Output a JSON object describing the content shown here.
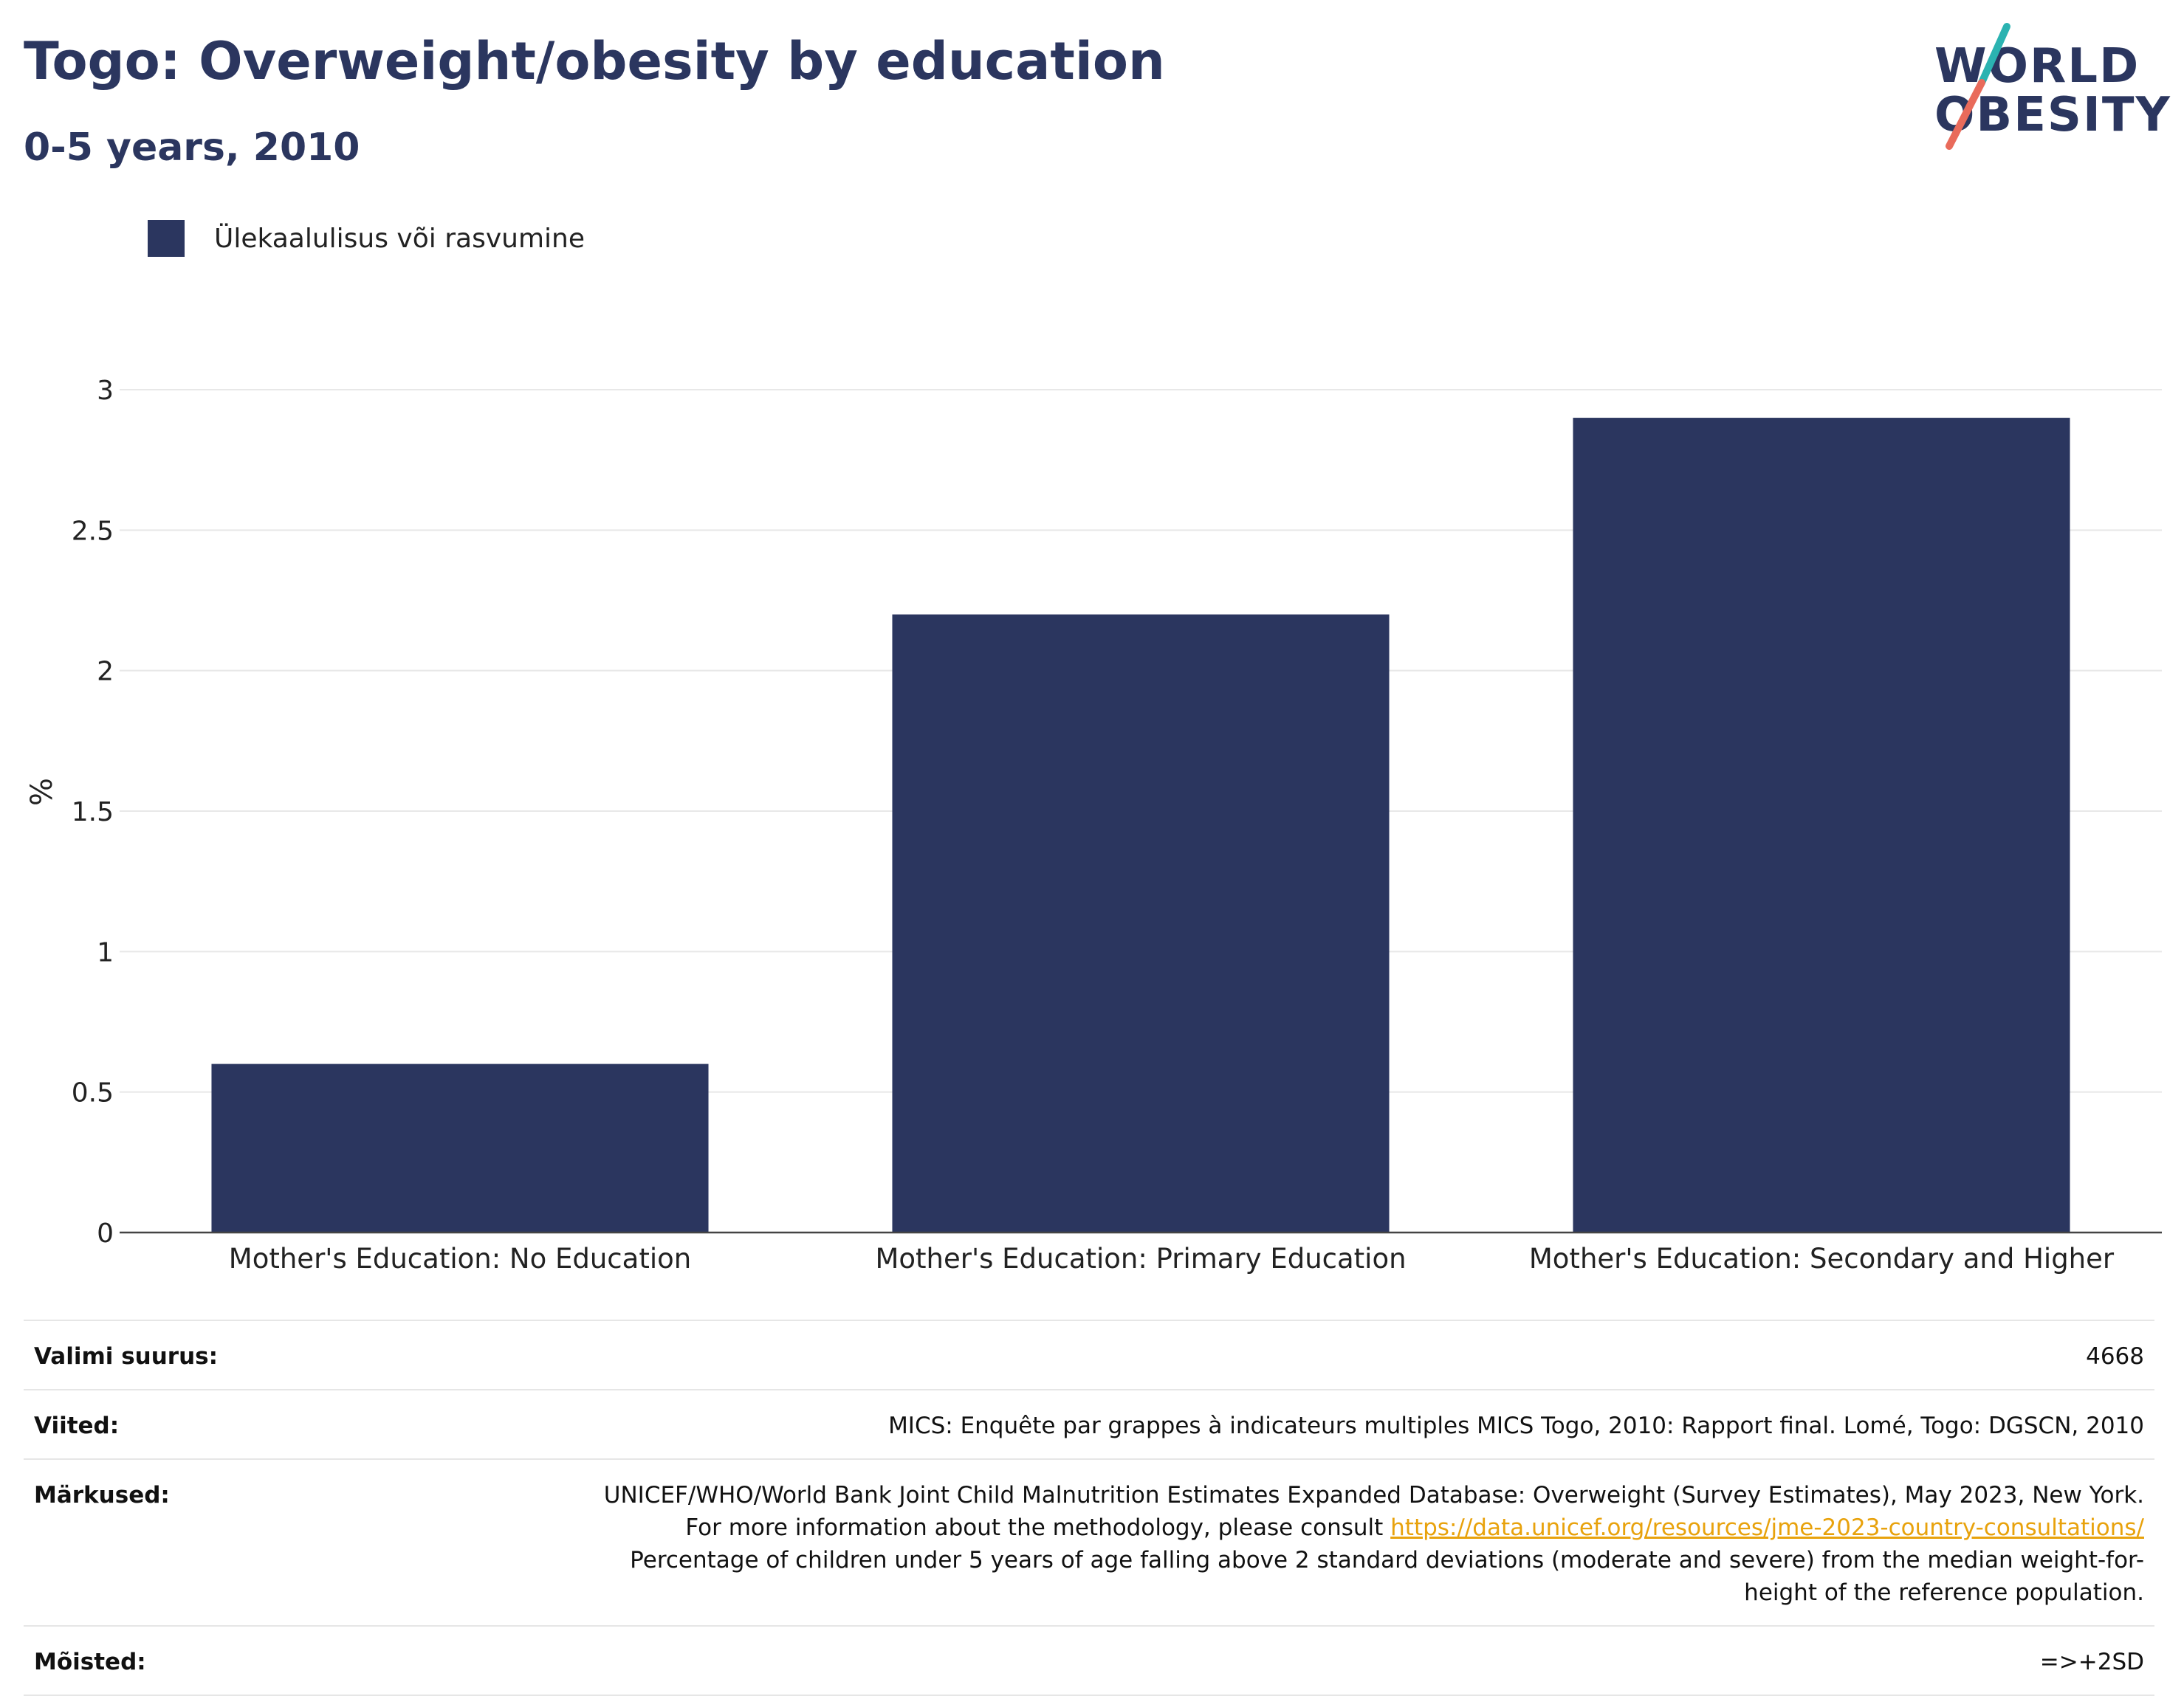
{
  "header": {
    "title": "Togo: Overweight/obesity by education",
    "subtitle": "0-5 years, 2010"
  },
  "logo": {
    "line1": "WORLD",
    "line2": "OBESITY",
    "colors": {
      "text": "#2b365f",
      "slash_top": "#2bb3b1",
      "slash_bottom": "#e96b5b"
    }
  },
  "legend": {
    "entries": [
      {
        "label": "Ülekaalulisus või rasvumine",
        "color": "#2b365f"
      }
    ]
  },
  "chart_data": {
    "type": "bar",
    "categories": [
      "Mother's Education: No Education",
      "Mother's Education: Primary Education",
      "Mother's Education: Secondary and Higher"
    ],
    "series": [
      {
        "name": "Ülekaalulisus või rasvumine",
        "values": [
          0.6,
          2.2,
          2.9
        ],
        "color": "#2b365f"
      }
    ],
    "ylabel": "%",
    "xlabel": "",
    "ylim": [
      0,
      3
    ],
    "yticks": [
      "0",
      "0.5",
      "1",
      "1.5",
      "2",
      "2.5",
      "3"
    ],
    "grid": true,
    "legend_position": "top-left"
  },
  "meta": {
    "sample_size": {
      "label": "Valimi suurus:",
      "value": "4668"
    },
    "references": {
      "label": "Viited:",
      "value": "MICS: Enquête par grappes à indicateurs multiples MICS Togo, 2010: Rapport final. Lomé, Togo: DGSCN, 2010"
    },
    "notes": {
      "label": "Märkused:",
      "text_before": "UNICEF/WHO/World Bank Joint Child Malnutrition Estimates Expanded Database: Overweight (Survey Estimates), May 2023, New York. For more information about the methodology, please consult ",
      "link": "https://data.unicef.org/resources/jme-2023-country-consultations/",
      "text_after": " Percentage of children under 5 years of age falling above 2 standard deviations (moderate and severe) from the median weight-for-height of the reference population."
    },
    "definitions": {
      "label": "Mõisted:",
      "value": "=>+2SD"
    }
  }
}
